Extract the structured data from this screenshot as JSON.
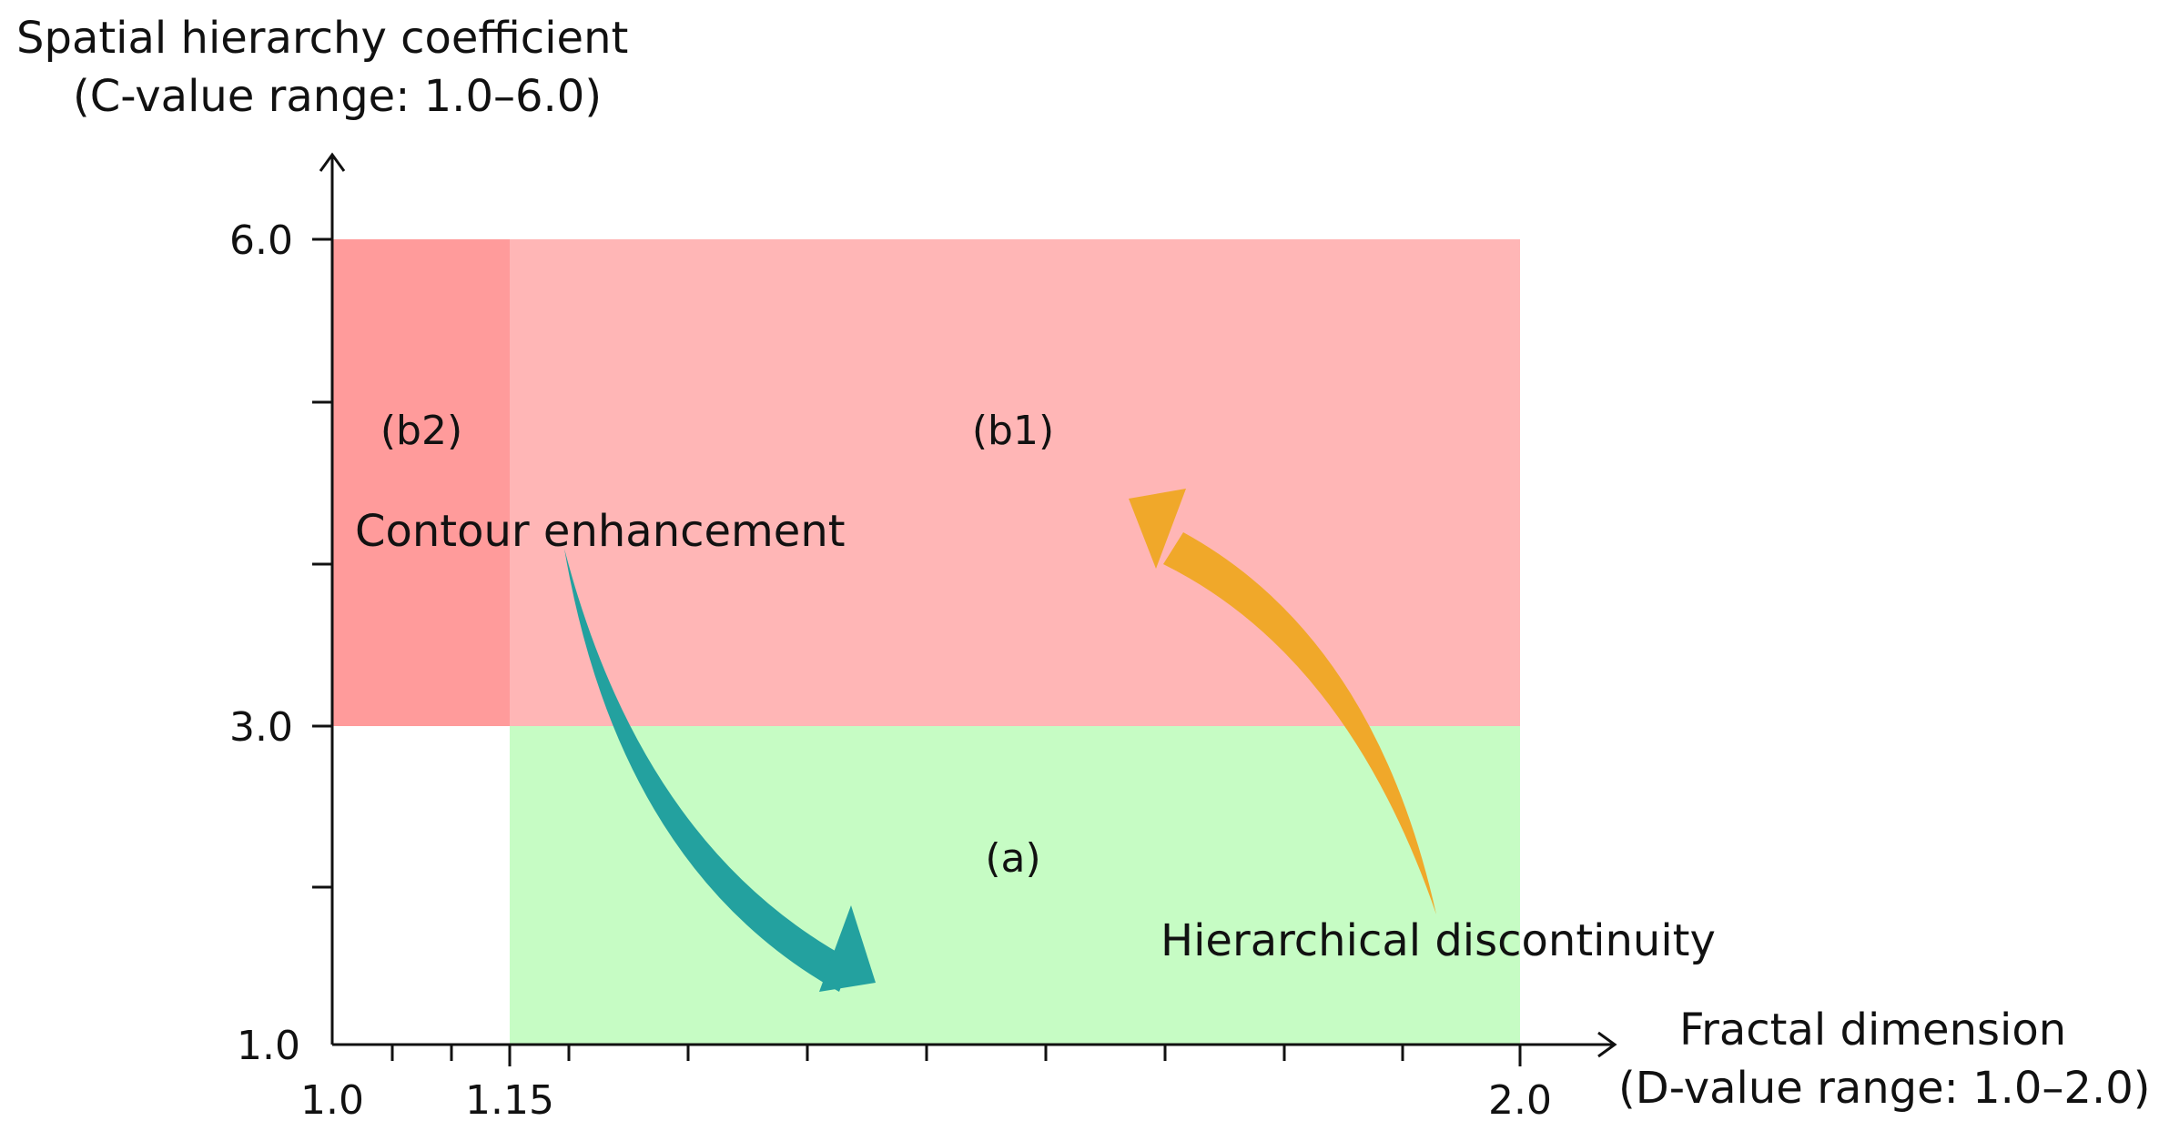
{
  "diagram": {
    "y_axis": {
      "title": "Spatial hierarchy coefficient",
      "subtitle": "(C-value range: 1.0–6.0)",
      "ticks": [
        "6.0",
        "3.0",
        "1.0"
      ]
    },
    "x_axis": {
      "title": "Fractal dimension",
      "subtitle": "(D-value range: 1.0–2.0)",
      "ticks": [
        "1.0",
        "1.15",
        "2.0"
      ]
    },
    "regions": {
      "b2": {
        "label": "(b2)",
        "color": "#ff9b9b",
        "x_range": [
          1.0,
          1.15
        ],
        "y_range": [
          3.0,
          6.0
        ]
      },
      "b1": {
        "label": "(b1)",
        "color": "#ffb6b6",
        "x_range": [
          1.15,
          2.0
        ],
        "y_range": [
          3.0,
          6.0
        ]
      },
      "a": {
        "label": "(a)",
        "color": "#c6fcc4",
        "x_range": [
          1.15,
          2.0
        ],
        "y_range": [
          1.0,
          3.0
        ]
      }
    },
    "arrows": {
      "contour": {
        "label": "Contour enhancement",
        "color": "#23a19f"
      },
      "discontinuity": {
        "label": "Hierarchical discontinuity",
        "color": "#f0a82a"
      }
    }
  }
}
